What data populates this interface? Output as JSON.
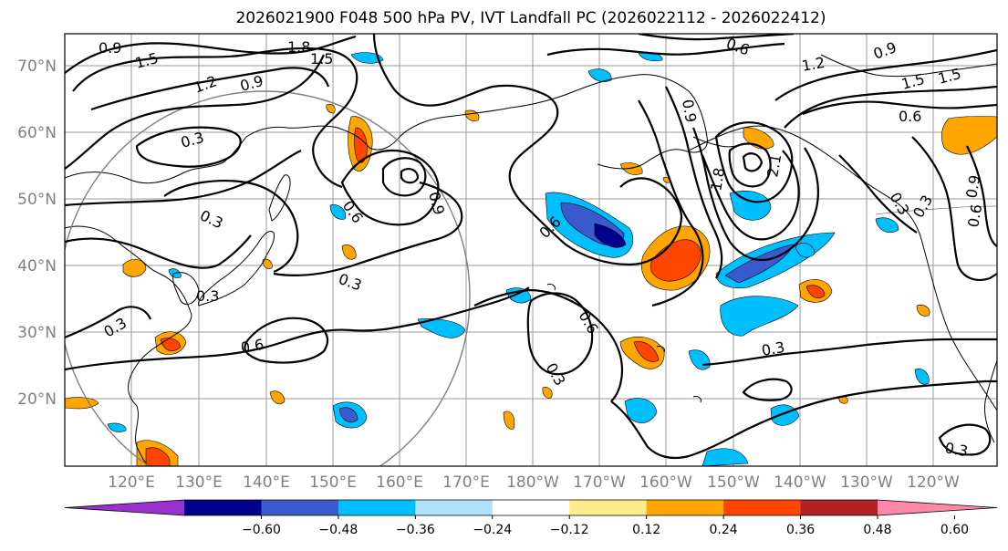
{
  "title": "2026021900 F048 500 hPa PV, IVT Landfall PC (2026022112 - 2026022412)",
  "lat_labels": [
    "70°N",
    "60°N",
    "50°N",
    "40°N",
    "30°N",
    "20°N"
  ],
  "lon_labels": [
    "120°E",
    "130°E",
    "140°E",
    "150°E",
    "160°E",
    "170°E",
    "180°W",
    "170°W",
    "160°W",
    "150°W",
    "140°W",
    "130°W",
    "120°W"
  ],
  "colorbar": {
    "colors": [
      "#9932cc",
      "#00008b",
      "#3a5bcd",
      "#00bfff",
      "#aee1fa",
      "#ffffff",
      "#ffeb8a",
      "#ffa500",
      "#ff4500",
      "#b22222",
      "#ff88aa"
    ],
    "tick_labels": [
      "−0.60",
      "−0.48",
      "−0.36",
      "−0.24",
      "−0.12",
      "0.12",
      "0.24",
      "0.36",
      "0.48",
      "0.60"
    ]
  },
  "contour_labels": [
    "0.9",
    "1.5",
    "1.8",
    "1.5",
    "1.2",
    "0.9",
    "0.3",
    "0.3",
    "0.6",
    "0.9",
    "0.3",
    "0.3",
    "0.6",
    "0.3",
    "0.6",
    "0.3",
    "0.6",
    "0.6",
    "0.9",
    "0.9",
    "1.2",
    "1.5",
    "0.6",
    "0.3",
    "0.9",
    "0.3",
    "0.6",
    "0.3",
    "1.5",
    "1.8",
    "2.1",
    "0.3"
  ]
}
